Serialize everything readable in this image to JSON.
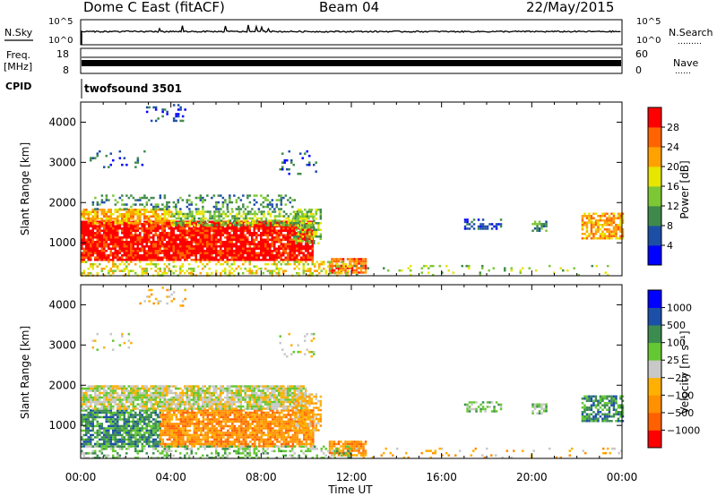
{
  "header": {
    "station": "Dome C East (fitACF)",
    "beam": "Beam 04",
    "date": "22/May/2015"
  },
  "noise_panel": {
    "left_label": "N.Sky",
    "right_label": "N.Search",
    "right_dots": "………",
    "ticks_left": [
      "10^5",
      "10^0"
    ],
    "ticks_right": [
      "10^5",
      "10^0"
    ]
  },
  "freq_panel": {
    "label_top": "Freq.",
    "label_bottom": "[MHz]",
    "ticks_left": [
      "18",
      "8"
    ],
    "right_label": "Nave",
    "right_dots": "……",
    "ticks_right": [
      "60",
      "0"
    ]
  },
  "cpid_panel": {
    "label": "CPID",
    "program": "twofsound 3501"
  },
  "x_axis": {
    "label": "Time UT",
    "ticks": [
      "00:00",
      "04:00",
      "08:00",
      "12:00",
      "16:00",
      "20:00",
      "00:00"
    ]
  },
  "colors": {
    "power": [
      "#0000ff",
      "#1c4ea6",
      "#3f8a4a",
      "#7cc734",
      "#e6e600",
      "#ffa200",
      "#ff6400",
      "#ff0000"
    ],
    "velocity": [
      "#ff0000",
      "#ff6000",
      "#ff9000",
      "#ffb000",
      "#c8c8c8",
      "#64c832",
      "#3c8c50",
      "#1c50a8",
      "#0000ff"
    ]
  },
  "chart_data": [
    {
      "type": "heatmap",
      "name": "power",
      "ylabel": "Slant Range [km]",
      "xlabel": "",
      "yticks": [
        "1000",
        "2000",
        "3000",
        "4000"
      ],
      "ylim": [
        180,
        4500
      ],
      "xlim": [
        0,
        24
      ],
      "colorbar": {
        "label": "Power [dB]",
        "ticks": [
          "4",
          "8",
          "12",
          "16",
          "20",
          "24",
          "28"
        ]
      },
      "regions": [
        {
          "x0": 0.0,
          "x1": 10.3,
          "y0": 550,
          "y1": 1550,
          "c": 7,
          "d": 0.9
        },
        {
          "x0": 0.0,
          "x1": 4.0,
          "y0": 1500,
          "y1": 1850,
          "c": 5,
          "d": 0.75
        },
        {
          "x0": 4.0,
          "x1": 10.3,
          "y0": 1450,
          "y1": 1800,
          "c": 3,
          "d": 0.6
        },
        {
          "x0": 0.5,
          "x1": 9.5,
          "y0": 1850,
          "y1": 2200,
          "c": 2,
          "d": 0.3
        },
        {
          "x0": 9.4,
          "x1": 10.6,
          "y0": 1000,
          "y1": 1850,
          "c": 3,
          "d": 0.55
        },
        {
          "x0": 8.8,
          "x1": 10.4,
          "y0": 2700,
          "y1": 3300,
          "c": 1,
          "d": 0.12
        },
        {
          "x0": 0.3,
          "x1": 2.8,
          "y0": 2900,
          "y1": 3300,
          "c": 1,
          "d": 0.12
        },
        {
          "x0": 2.6,
          "x1": 4.6,
          "y0": 4000,
          "y1": 4450,
          "c": 1,
          "d": 0.15
        },
        {
          "x0": 11.0,
          "x1": 12.6,
          "y0": 250,
          "y1": 620,
          "c": 6,
          "d": 0.8
        },
        {
          "x0": 12.0,
          "x1": 24.0,
          "y0": 180,
          "y1": 450,
          "c": 3,
          "d": 0.12
        },
        {
          "x0": 0.0,
          "x1": 12.0,
          "y0": 180,
          "y1": 550,
          "c": 4,
          "d": 0.35
        },
        {
          "x0": 17.0,
          "x1": 18.6,
          "y0": 1350,
          "y1": 1600,
          "c": 1,
          "d": 0.45
        },
        {
          "x0": 20.0,
          "x1": 20.6,
          "y0": 1300,
          "y1": 1550,
          "c": 2,
          "d": 0.55
        },
        {
          "x0": 22.2,
          "x1": 24.0,
          "y0": 1100,
          "y1": 1750,
          "c": 5,
          "d": 0.7
        }
      ]
    },
    {
      "type": "heatmap",
      "name": "velocity",
      "ylabel": "Slant Range [km]",
      "xlabel": "Time UT",
      "yticks": [
        "1000",
        "2000",
        "3000",
        "4000"
      ],
      "ylim": [
        180,
        4500
      ],
      "xlim": [
        0,
        24
      ],
      "colorbar": {
        "label": "Velocity [m s⁻¹]",
        "ticks": [
          "-1000",
          "-500",
          "-100",
          "-25",
          "25",
          "100",
          "500",
          "1000"
        ]
      },
      "regions": [
        {
          "x0": 0.0,
          "x1": 3.5,
          "y0": 500,
          "y1": 1400,
          "c": 6,
          "d": 0.8
        },
        {
          "x0": 3.5,
          "x1": 10.3,
          "y0": 500,
          "y1": 1400,
          "c": 2,
          "d": 0.85
        },
        {
          "x0": 0.0,
          "x1": 10.0,
          "y0": 1400,
          "y1": 2000,
          "c": 4,
          "d": 0.85
        },
        {
          "x0": 9.4,
          "x1": 10.6,
          "y0": 900,
          "y1": 1800,
          "c": 3,
          "d": 0.6
        },
        {
          "x0": 8.8,
          "x1": 10.4,
          "y0": 2700,
          "y1": 3300,
          "c": 4,
          "d": 0.15
        },
        {
          "x0": 0.3,
          "x1": 2.8,
          "y0": 2900,
          "y1": 3300,
          "c": 4,
          "d": 0.12
        },
        {
          "x0": 2.6,
          "x1": 4.6,
          "y0": 4000,
          "y1": 4450,
          "c": 3,
          "d": 0.15
        },
        {
          "x0": 11.0,
          "x1": 12.6,
          "y0": 250,
          "y1": 620,
          "c": 2,
          "d": 0.8
        },
        {
          "x0": 12.0,
          "x1": 24.0,
          "y0": 180,
          "y1": 450,
          "c": 3,
          "d": 0.1
        },
        {
          "x0": 0.0,
          "x1": 12.0,
          "y0": 180,
          "y1": 500,
          "c": 5,
          "d": 0.35
        },
        {
          "x0": 17.0,
          "x1": 18.6,
          "y0": 1350,
          "y1": 1600,
          "c": 5,
          "d": 0.45
        },
        {
          "x0": 20.0,
          "x1": 20.6,
          "y0": 1300,
          "y1": 1550,
          "c": 5,
          "d": 0.55
        },
        {
          "x0": 22.2,
          "x1": 24.0,
          "y0": 1100,
          "y1": 1750,
          "c": 6,
          "d": 0.7
        }
      ]
    }
  ]
}
